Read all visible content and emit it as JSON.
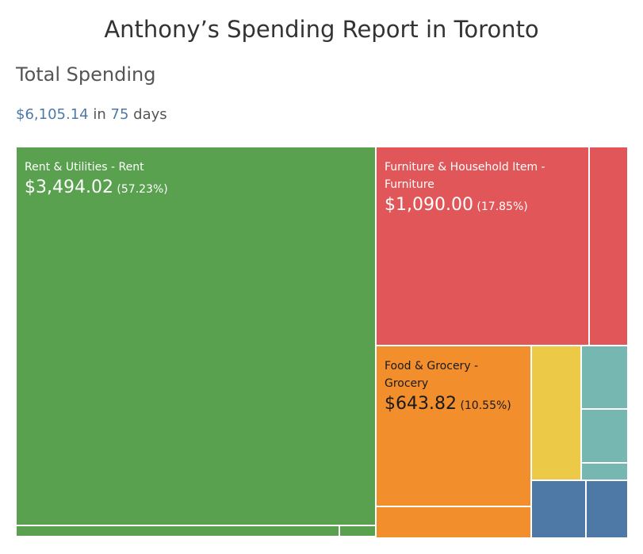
{
  "header": {
    "title": "Anthony’s Spending Report in Toronto",
    "subtitle": "Total Spending",
    "total": "$6,105.14",
    "in_text": "in",
    "days": "75",
    "days_text": "days"
  },
  "colors": {
    "accent": "#4e79a7",
    "rent": "#59a14f",
    "furniture": "#e15759",
    "grocery": "#f28e2b",
    "yellow": "#edc948",
    "teal": "#76b7b2",
    "blue": "#4e79a7"
  },
  "chart_data": {
    "type": "treemap",
    "total_spending": 6105.14,
    "days": 75,
    "labeled_tiles": [
      {
        "category": "Rent & Utilities - Rent",
        "value": 3494.02,
        "amount": "$3,494.02",
        "percent": "(57.23%)",
        "color": "#59a14f"
      },
      {
        "category": "Furniture & Household Item - Furniture",
        "value": 1090.0,
        "amount": "$1,090.00",
        "percent": "(17.85%)",
        "color": "#e15759"
      },
      {
        "category": "Food & Grocery - Grocery",
        "value": 643.82,
        "amount": "$643.82",
        "percent": "(10.55%)",
        "color": "#f28e2b"
      }
    ]
  }
}
